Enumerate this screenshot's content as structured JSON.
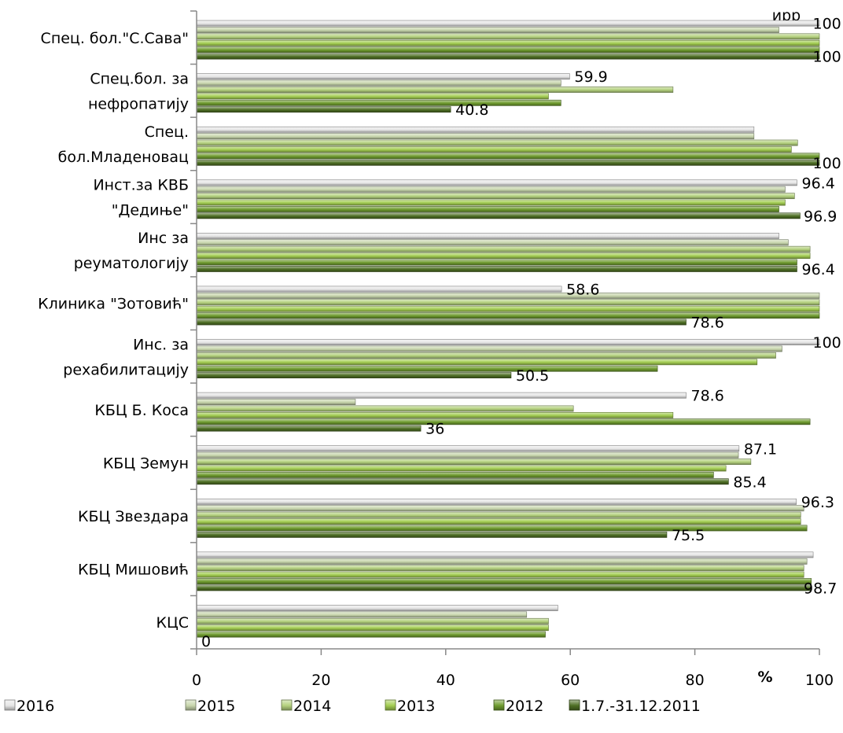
{
  "chart_data": {
    "type": "bar",
    "orientation": "horizontal",
    "grid": false,
    "legend_position": "bottom",
    "xlim": [
      0,
      100
    ],
    "x_ticks": [
      "0",
      "20",
      "40",
      "60",
      "80",
      "100"
    ],
    "xlabel": "%",
    "header_fragment": "ирр",
    "categories": [
      "Спец. бол.\"С.Сава\"",
      "Спец.бол. за нефропатију",
      "Спец. бол.Младеновац",
      "Инст.за КВБ \"Дедиње\"",
      "Инс за реуматологију",
      "Клиника \"Зотовић\"",
      "Инс. за рехабилитацију",
      "КБЦ Б. Коса",
      "КБЦ Земун",
      "КБЦ Звездара",
      "КБЦ Мишовић",
      "КЦС"
    ],
    "category_lines": [
      [
        "Спец. бол.\"С.Сава\""
      ],
      [
        "Спец.бол. за",
        "нефропатију"
      ],
      [
        "Спец.",
        "бол.Младеновац"
      ],
      [
        "Инст.за КВБ",
        "\"Дедиње\""
      ],
      [
        "Инс за",
        "реуматологију"
      ],
      [
        "Клиника \"Зотовић\""
      ],
      [
        "Инс. за",
        "рехабилитацију"
      ],
      [
        "КБЦ Б. Коса"
      ],
      [
        "КБЦ Земун"
      ],
      [
        "КБЦ Звездара"
      ],
      [
        "КБЦ Мишовић"
      ],
      [
        "КЦС"
      ]
    ],
    "series": [
      {
        "name": "2016",
        "color": "#e6e6e6",
        "values": [
          100,
          59.9,
          89.5,
          96.4,
          93.5,
          58.6,
          100,
          78.6,
          87.1,
          96.3,
          99,
          58
        ]
      },
      {
        "name": "2015",
        "color": "#c8d6ad",
        "values": [
          93.5,
          58.5,
          89.5,
          94.5,
          95,
          100,
          94,
          25.5,
          87,
          97.5,
          98,
          53
        ]
      },
      {
        "name": "2014",
        "color": "#b4d17e",
        "values": [
          100,
          76.5,
          96.5,
          96,
          98.5,
          100,
          93,
          60.5,
          89,
          97,
          97.5,
          56.5
        ]
      },
      {
        "name": "2013",
        "color": "#a3cd52",
        "values": [
          100,
          56.5,
          95.5,
          94.5,
          98.5,
          100,
          90,
          76.5,
          85,
          97,
          97.5,
          56.5
        ]
      },
      {
        "name": "2012",
        "color": "#6f9c2f",
        "values": [
          100,
          58.5,
          100,
          93.5,
          96.4,
          100,
          74,
          98.5,
          83,
          98,
          98.7,
          56
        ]
      },
      {
        "name": "1.7.-31.12.2011",
        "color": "#4e6f24",
        "values": [
          100,
          40.8,
          100,
          96.9,
          96.4,
          78.6,
          50.5,
          36,
          85.4,
          75.5,
          98.7,
          0
        ]
      }
    ],
    "data_labels": [
      {
        "category": 0,
        "series": 0,
        "text": "100"
      },
      {
        "category": 0,
        "series": 5,
        "text": "100"
      },
      {
        "category": 1,
        "series": 0,
        "text": "59.9"
      },
      {
        "category": 1,
        "series": 5,
        "text": "40.8"
      },
      {
        "category": 2,
        "series": 5,
        "text": "100"
      },
      {
        "category": 3,
        "series": 0,
        "text": "96.4"
      },
      {
        "category": 3,
        "series": 5,
        "text": "96.9"
      },
      {
        "category": 4,
        "series": 5,
        "text": "96.4"
      },
      {
        "category": 5,
        "series": 0,
        "text": "58.6"
      },
      {
        "category": 5,
        "series": 5,
        "text": "78.6"
      },
      {
        "category": 6,
        "series": 0,
        "text": "100"
      },
      {
        "category": 6,
        "series": 5,
        "text": "50.5"
      },
      {
        "category": 7,
        "series": 0,
        "text": "78.6"
      },
      {
        "category": 7,
        "series": 5,
        "text": "36"
      },
      {
        "category": 8,
        "series": 0,
        "text": "87.1"
      },
      {
        "category": 8,
        "series": 5,
        "text": "85.4"
      },
      {
        "category": 9,
        "series": 0,
        "text": "96.3"
      },
      {
        "category": 9,
        "series": 5,
        "text": "75.5"
      },
      {
        "category": 10,
        "series": 5,
        "text": "98.7"
      },
      {
        "category": 11,
        "series": 5,
        "text": "0"
      }
    ]
  }
}
